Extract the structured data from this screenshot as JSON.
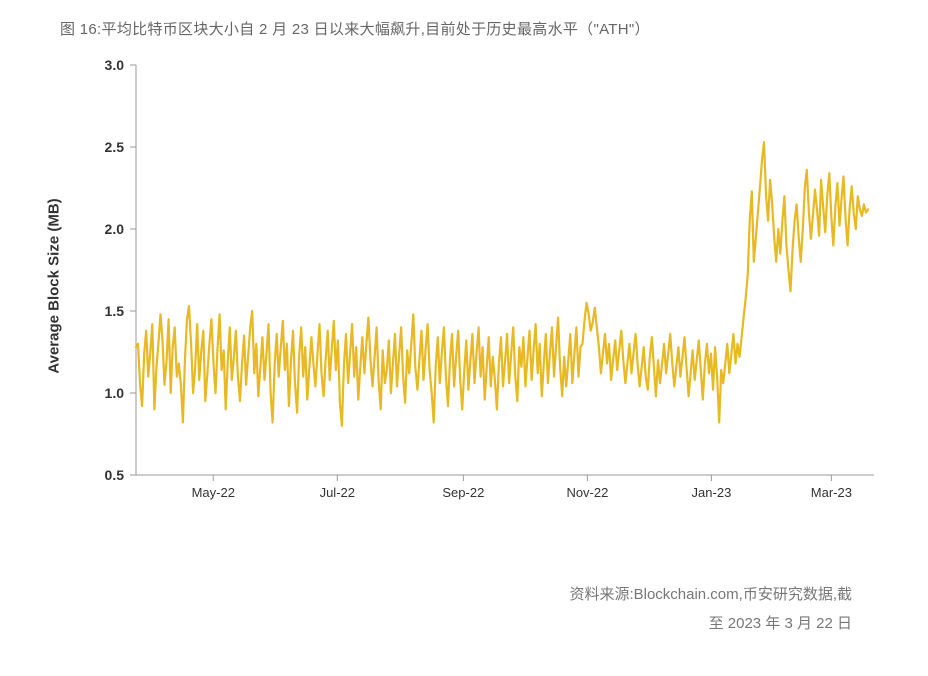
{
  "title": "图 16:平均比特币区块大小自 2 月 23 日以来大幅飙升,目前处于历史最高水平（\"ATH\"）",
  "source_line1": "资料来源:Blockchain.com,币安研究数据,截",
  "source_line2": "至 2023 年 3 月 22 日",
  "chart": {
    "type": "line",
    "ylabel": "Average Block Size (MB)",
    "ylim": [
      0.5,
      3.0
    ],
    "yticks": [
      0.5,
      1.0,
      1.5,
      2.0,
      2.5,
      3.0
    ],
    "xlim": [
      0,
      360
    ],
    "xticks": [
      {
        "pos": 38,
        "label": "May-22"
      },
      {
        "pos": 99,
        "label": "Jul-22"
      },
      {
        "pos": 161,
        "label": "Sep-22"
      },
      {
        "pos": 222,
        "label": "Nov-22"
      },
      {
        "pos": 283,
        "label": "Jan-23"
      },
      {
        "pos": 342,
        "label": "Mar-23"
      }
    ],
    "line_color": "#e8b923",
    "axis_color": "#9a9a9a",
    "background_color": "#ffffff",
    "line_width": 2.2,
    "grid": false,
    "series": [
      1.28,
      1.3,
      1.05,
      0.92,
      1.24,
      1.38,
      1.1,
      1.25,
      1.42,
      0.9,
      1.15,
      1.3,
      1.48,
      1.32,
      1.05,
      1.2,
      1.45,
      1.0,
      1.28,
      1.4,
      1.1,
      1.18,
      1.05,
      0.82,
      1.2,
      1.45,
      1.53,
      1.3,
      1.0,
      1.15,
      1.42,
      1.08,
      1.25,
      1.38,
      0.95,
      1.12,
      1.3,
      1.45,
      1.18,
      1.0,
      1.28,
      1.48,
      1.14,
      1.26,
      0.9,
      1.2,
      1.4,
      1.08,
      1.22,
      1.38,
      1.1,
      0.95,
      1.18,
      1.35,
      1.05,
      1.22,
      1.4,
      1.5,
      1.12,
      1.3,
      0.98,
      1.16,
      1.34,
      1.08,
      1.24,
      1.42,
      1.0,
      0.82,
      1.18,
      1.36,
      1.1,
      1.28,
      1.44,
      1.14,
      1.3,
      0.92,
      1.2,
      1.38,
      1.06,
      0.88,
      1.22,
      1.4,
      1.1,
      1.28,
      0.96,
      1.15,
      1.34,
      1.18,
      1.04,
      1.24,
      1.42,
      1.12,
      0.98,
      1.2,
      1.38,
      1.08,
      1.26,
      1.44,
      1.14,
      1.32,
      0.94,
      0.8,
      1.18,
      1.36,
      1.06,
      1.24,
      1.42,
      1.1,
      1.28,
      0.96,
      1.16,
      1.34,
      1.12,
      1.3,
      1.46,
      1.2,
      1.04,
      1.22,
      1.4,
      1.08,
      0.9,
      1.26,
      1.06,
      1.14,
      1.32,
      1.0,
      1.18,
      1.36,
      1.04,
      1.22,
      1.4,
      1.1,
      0.94,
      1.26,
      1.12,
      1.3,
      1.48,
      1.16,
      1.02,
      1.2,
      1.38,
      1.08,
      1.26,
      1.42,
      1.14,
      1.0,
      0.82,
      1.16,
      1.34,
      1.06,
      1.24,
      1.4,
      1.1,
      0.92,
      1.2,
      1.36,
      1.04,
      1.22,
      1.38,
      1.08,
      0.9,
      1.14,
      1.32,
      1.02,
      1.2,
      1.36,
      1.06,
      1.24,
      1.4,
      1.1,
      1.28,
      0.96,
      1.16,
      1.34,
      1.04,
      1.22,
      1.08,
      0.9,
      1.18,
      1.34,
      1.04,
      1.2,
      1.36,
      1.06,
      1.24,
      1.4,
      1.1,
      0.95,
      1.28,
      1.16,
      1.34,
      1.04,
      1.22,
      1.38,
      1.08,
      1.26,
      1.42,
      1.12,
      1.3,
      0.98,
      1.18,
      1.36,
      1.06,
      1.24,
      1.4,
      1.1,
      1.28,
      1.46,
      1.16,
      0.98,
      1.22,
      1.04,
      1.2,
      1.36,
      1.06,
      1.24,
      1.4,
      1.1,
      1.28,
      1.3,
      1.45,
      1.55,
      1.48,
      1.38,
      1.43,
      1.52,
      1.4,
      1.28,
      1.12,
      1.24,
      1.36,
      1.18,
      1.3,
      1.08,
      1.2,
      1.32,
      1.14,
      1.26,
      1.38,
      1.2,
      1.06,
      1.18,
      1.3,
      1.12,
      1.24,
      1.36,
      1.18,
      1.04,
      1.16,
      1.28,
      1.1,
      1.02,
      1.22,
      1.34,
      1.16,
      0.98,
      1.2,
      1.06,
      1.18,
      1.3,
      1.12,
      1.24,
      1.36,
      1.18,
      1.04,
      1.16,
      1.28,
      1.1,
      1.22,
      1.34,
      1.16,
      0.98,
      1.12,
      1.26,
      1.08,
      1.2,
      1.32,
      1.14,
      0.96,
      1.18,
      1.3,
      1.12,
      1.24,
      1.02,
      1.28,
      1.1,
      0.82,
      1.14,
      1.06,
      1.18,
      1.3,
      1.12,
      1.24,
      1.36,
      1.18,
      1.3,
      1.22,
      1.34,
      1.46,
      1.58,
      1.72,
      2.05,
      2.23,
      1.8,
      1.95,
      2.1,
      2.25,
      2.42,
      2.53,
      2.2,
      2.05,
      2.3,
      2.15,
      1.95,
      1.8,
      2.0,
      1.85,
      2.05,
      2.2,
      1.9,
      1.75,
      1.62,
      1.88,
      2.05,
      2.15,
      1.95,
      1.8,
      2.0,
      2.25,
      2.36,
      2.1,
      1.94,
      2.08,
      2.24,
      2.12,
      1.96,
      2.3,
      2.14,
      1.98,
      2.2,
      2.34,
      2.08,
      1.9,
      2.14,
      2.28,
      2.02,
      2.18,
      2.32,
      2.06,
      1.9,
      2.12,
      2.26,
      2.1,
      2.0,
      2.2,
      2.12,
      2.08,
      2.15,
      2.1,
      2.12
    ]
  }
}
